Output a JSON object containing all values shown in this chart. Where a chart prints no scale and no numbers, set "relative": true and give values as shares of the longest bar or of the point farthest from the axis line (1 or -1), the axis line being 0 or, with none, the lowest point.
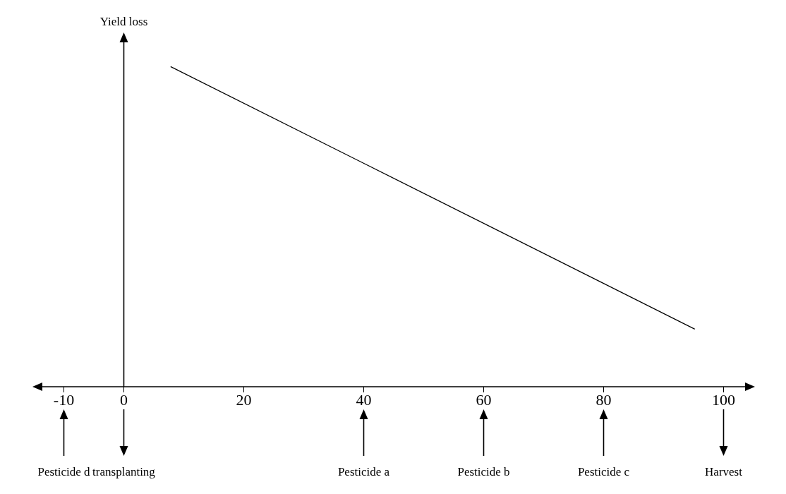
{
  "chart_data": {
    "type": "line",
    "relative": true,
    "ylabel": "Yield loss",
    "xlim": [
      -15,
      105
    ],
    "xticks": [
      -10,
      0,
      20,
      40,
      60,
      80,
      100
    ],
    "marker": "none",
    "line_style": "solid",
    "series": [
      {
        "color": "#000000",
        "x": [
          7.8,
          95.2
        ],
        "values": [
          1,
          0.18
        ]
      }
    ],
    "annotations": [
      "Pesticide d",
      "transplanting",
      "Pesticide a",
      "Pesticide b",
      "Pesticide c",
      "Harvest"
    ]
  }
}
